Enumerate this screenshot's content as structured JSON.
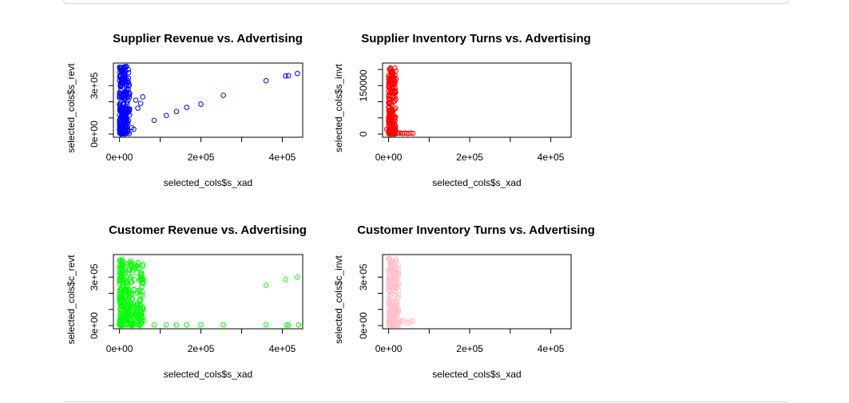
{
  "chart_data": [
    {
      "type": "scatter",
      "title": "Supplier Revenue vs. Advertising",
      "xlabel": "selected_cols$s_xad",
      "ylabel": "selected_cols$s_revt",
      "xlim": [
        -15000,
        450000
      ],
      "ylim": [
        0,
        420000
      ],
      "xticks": [
        {
          "value": 0,
          "label": "0e+00"
        },
        {
          "value": 100000,
          "label": ""
        },
        {
          "value": 200000,
          "label": "2e+05"
        },
        {
          "value": 300000,
          "label": ""
        },
        {
          "value": 400000,
          "label": "4e+05"
        }
      ],
      "yticks": [
        {
          "value": 0,
          "label": "0e+00"
        },
        {
          "value": 100000,
          "label": ""
        },
        {
          "value": 200000,
          "label": ""
        },
        {
          "value": 300000,
          "label": "3e+05"
        }
      ],
      "point_color": "#0000FF",
      "point_shape": "circle",
      "cluster": {
        "x_max": 25000,
        "y_max": 420000,
        "count": 220
      },
      "x": [
        3000,
        5000,
        8000,
        1000,
        2000,
        6000,
        9000,
        12000,
        15000,
        18000,
        22000,
        25000,
        12000,
        15000,
        20000,
        30000,
        35000,
        40000,
        45000,
        52000,
        57000,
        85000,
        115000,
        140000,
        165000,
        200000,
        255000,
        360000,
        408000,
        415000,
        437000
      ],
      "y": [
        410000,
        400000,
        405000,
        10000,
        5000,
        15000,
        8000,
        20000,
        30000,
        280000,
        320000,
        250000,
        150000,
        50000,
        25000,
        40000,
        30000,
        210000,
        160000,
        190000,
        230000,
        85000,
        115000,
        140000,
        165000,
        185000,
        240000,
        330000,
        360000,
        362000,
        375000
      ]
    },
    {
      "type": "scatter",
      "title": "Supplier Inventory Turns vs. Advertising",
      "xlabel": "selected_cols$s_xad",
      "ylabel": "selected_cols$s_invt",
      "xlim": [
        -15000,
        450000
      ],
      "ylim": [
        0,
        210000
      ],
      "xticks": [
        {
          "value": 0,
          "label": "0e+00"
        },
        {
          "value": 100000,
          "label": ""
        },
        {
          "value": 200000,
          "label": "2e+05"
        },
        {
          "value": 300000,
          "label": ""
        },
        {
          "value": 400000,
          "label": "4e+05"
        }
      ],
      "yticks": [
        {
          "value": 0,
          "label": "0"
        },
        {
          "value": 50000,
          "label": ""
        },
        {
          "value": 100000,
          "label": ""
        },
        {
          "value": 150000,
          "label": "150000"
        },
        {
          "value": 200000,
          "label": ""
        }
      ],
      "point_color": "#FF0000",
      "point_shape": "circle",
      "cluster": {
        "x_max": 18000,
        "y_max": 205000,
        "count": 180
      },
      "x": [
        -5000,
        2000,
        4000,
        6000,
        8000,
        10000,
        5000,
        12000,
        14000,
        16000,
        18000,
        22000,
        25000,
        30000,
        35000,
        40000,
        45000,
        50000,
        55000,
        60000
      ],
      "y": [
        15000,
        200000,
        205000,
        190000,
        195000,
        180000,
        160000,
        170000,
        175000,
        165000,
        170000,
        3000,
        3000,
        3000,
        2000,
        3000,
        2000,
        2000,
        3000,
        2000
      ]
    },
    {
      "type": "scatter",
      "title": "Customer Revenue vs. Advertising",
      "xlabel": "selected_cols$s_xad",
      "ylabel": "selected_cols$c_revt",
      "xlim": [
        -15000,
        450000
      ],
      "ylim": [
        0,
        420000
      ],
      "xticks": [
        {
          "value": 0,
          "label": "0e+00"
        },
        {
          "value": 100000,
          "label": ""
        },
        {
          "value": 200000,
          "label": "2e+05"
        },
        {
          "value": 300000,
          "label": ""
        },
        {
          "value": 400000,
          "label": "4e+05"
        }
      ],
      "yticks": [
        {
          "value": 0,
          "label": "0e+00"
        },
        {
          "value": 100000,
          "label": ""
        },
        {
          "value": 200000,
          "label": ""
        },
        {
          "value": 300000,
          "label": "3e+05"
        }
      ],
      "point_color": "#00FF00",
      "point_shape": "circle",
      "cluster": {
        "x_max": 60000,
        "y_max": 400000,
        "count": 260
      },
      "x": [
        0,
        2000,
        4000,
        6000,
        8000,
        20000,
        25000,
        28000,
        35000,
        40000,
        45000,
        50000,
        55000,
        60000,
        85000,
        115000,
        140000,
        165000,
        200000,
        255000,
        360000,
        408000,
        415000,
        437000,
        360000,
        410000,
        440000
      ],
      "y": [
        405000,
        400000,
        390000,
        410000,
        395000,
        385000,
        390000,
        400000,
        60000,
        50000,
        45000,
        40000,
        35000,
        30000,
        5000,
        5000,
        5000,
        5000,
        5000,
        5000,
        250000,
        285000,
        2000,
        300000,
        5000,
        5000,
        5000
      ]
    },
    {
      "type": "scatter",
      "title": "Customer Inventory Turns vs. Advertising",
      "xlabel": "selected_cols$s_xad",
      "ylabel": "selected_cols$c_invt",
      "xlim": [
        -15000,
        450000
      ],
      "ylim": [
        0,
        420000
      ],
      "xticks": [
        {
          "value": 0,
          "label": "0e+00"
        },
        {
          "value": 100000,
          "label": ""
        },
        {
          "value": 200000,
          "label": "2e+05"
        },
        {
          "value": 300000,
          "label": ""
        },
        {
          "value": 400000,
          "label": "4e+05"
        }
      ],
      "yticks": [
        {
          "value": 0,
          "label": "0e+00"
        },
        {
          "value": 100000,
          "label": ""
        },
        {
          "value": 200000,
          "label": ""
        },
        {
          "value": 300000,
          "label": "3e+05"
        }
      ],
      "point_color": "#FFC0CB",
      "point_shape": "circle",
      "cluster": {
        "x_max": 25000,
        "y_max": 420000,
        "count": 200
      },
      "x": [
        0,
        2000,
        4000,
        20000,
        25000,
        22000,
        28000,
        30000,
        35000,
        40000,
        45000,
        50000,
        55000,
        60000
      ],
      "y": [
        415000,
        410000,
        405000,
        250000,
        260000,
        240000,
        20000,
        30000,
        25000,
        35000,
        20000,
        15000,
        25000,
        30000
      ]
    }
  ]
}
